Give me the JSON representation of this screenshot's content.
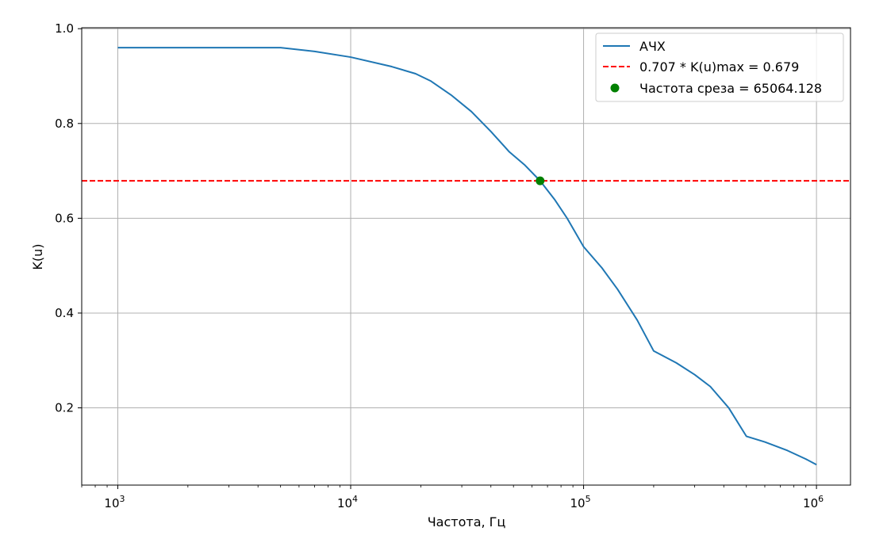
{
  "chart_data": {
    "type": "line",
    "title": "",
    "xlabel": "Частота, Гц",
    "ylabel": "K(u)",
    "xscale": "log",
    "xlim": [
      700,
      1400000
    ],
    "ylim": [
      0.037,
      1.002
    ],
    "grid": true,
    "legend_position": "top-right",
    "x_ticks": [
      {
        "base": "10",
        "exp": "3",
        "value": 1000
      },
      {
        "base": "10",
        "exp": "4",
        "value": 10000
      },
      {
        "base": "10",
        "exp": "5",
        "value": 100000
      },
      {
        "base": "10",
        "exp": "6",
        "value": 1000000
      }
    ],
    "y_ticks": [
      {
        "label": "0.2",
        "value": 0.2
      },
      {
        "label": "0.4",
        "value": 0.4
      },
      {
        "label": "0.6",
        "value": 0.6
      },
      {
        "label": "0.8",
        "value": 0.8
      },
      {
        "label": "1.0",
        "value": 1.0
      }
    ],
    "series": [
      {
        "name": "АЧХ",
        "color": "#1f77b4",
        "x": [
          1000,
          2000,
          3000,
          5000,
          7000,
          10000,
          15000,
          19000,
          22000,
          27000,
          33000,
          40000,
          48000,
          56000,
          65064,
          75000,
          85000,
          100000,
          120000,
          140000,
          170000,
          200000,
          250000,
          300000,
          350000,
          420000,
          500000,
          600000,
          750000,
          900000,
          1000000
        ],
        "y": [
          0.96,
          0.96,
          0.96,
          0.96,
          0.952,
          0.94,
          0.92,
          0.905,
          0.89,
          0.86,
          0.825,
          0.783,
          0.74,
          0.712,
          0.679,
          0.64,
          0.6,
          0.54,
          0.495,
          0.45,
          0.385,
          0.32,
          0.295,
          0.27,
          0.245,
          0.2,
          0.14,
          0.128,
          0.11,
          0.092,
          0.08
        ]
      },
      {
        "name": "0.707 * K(u)max = 0.679",
        "color": "#ff0000",
        "y_constant": 0.679
      },
      {
        "name": "Частота среза = 65064.128",
        "color": "#008000",
        "points": [
          {
            "x": 65064.128,
            "y": 0.679
          }
        ]
      }
    ]
  }
}
